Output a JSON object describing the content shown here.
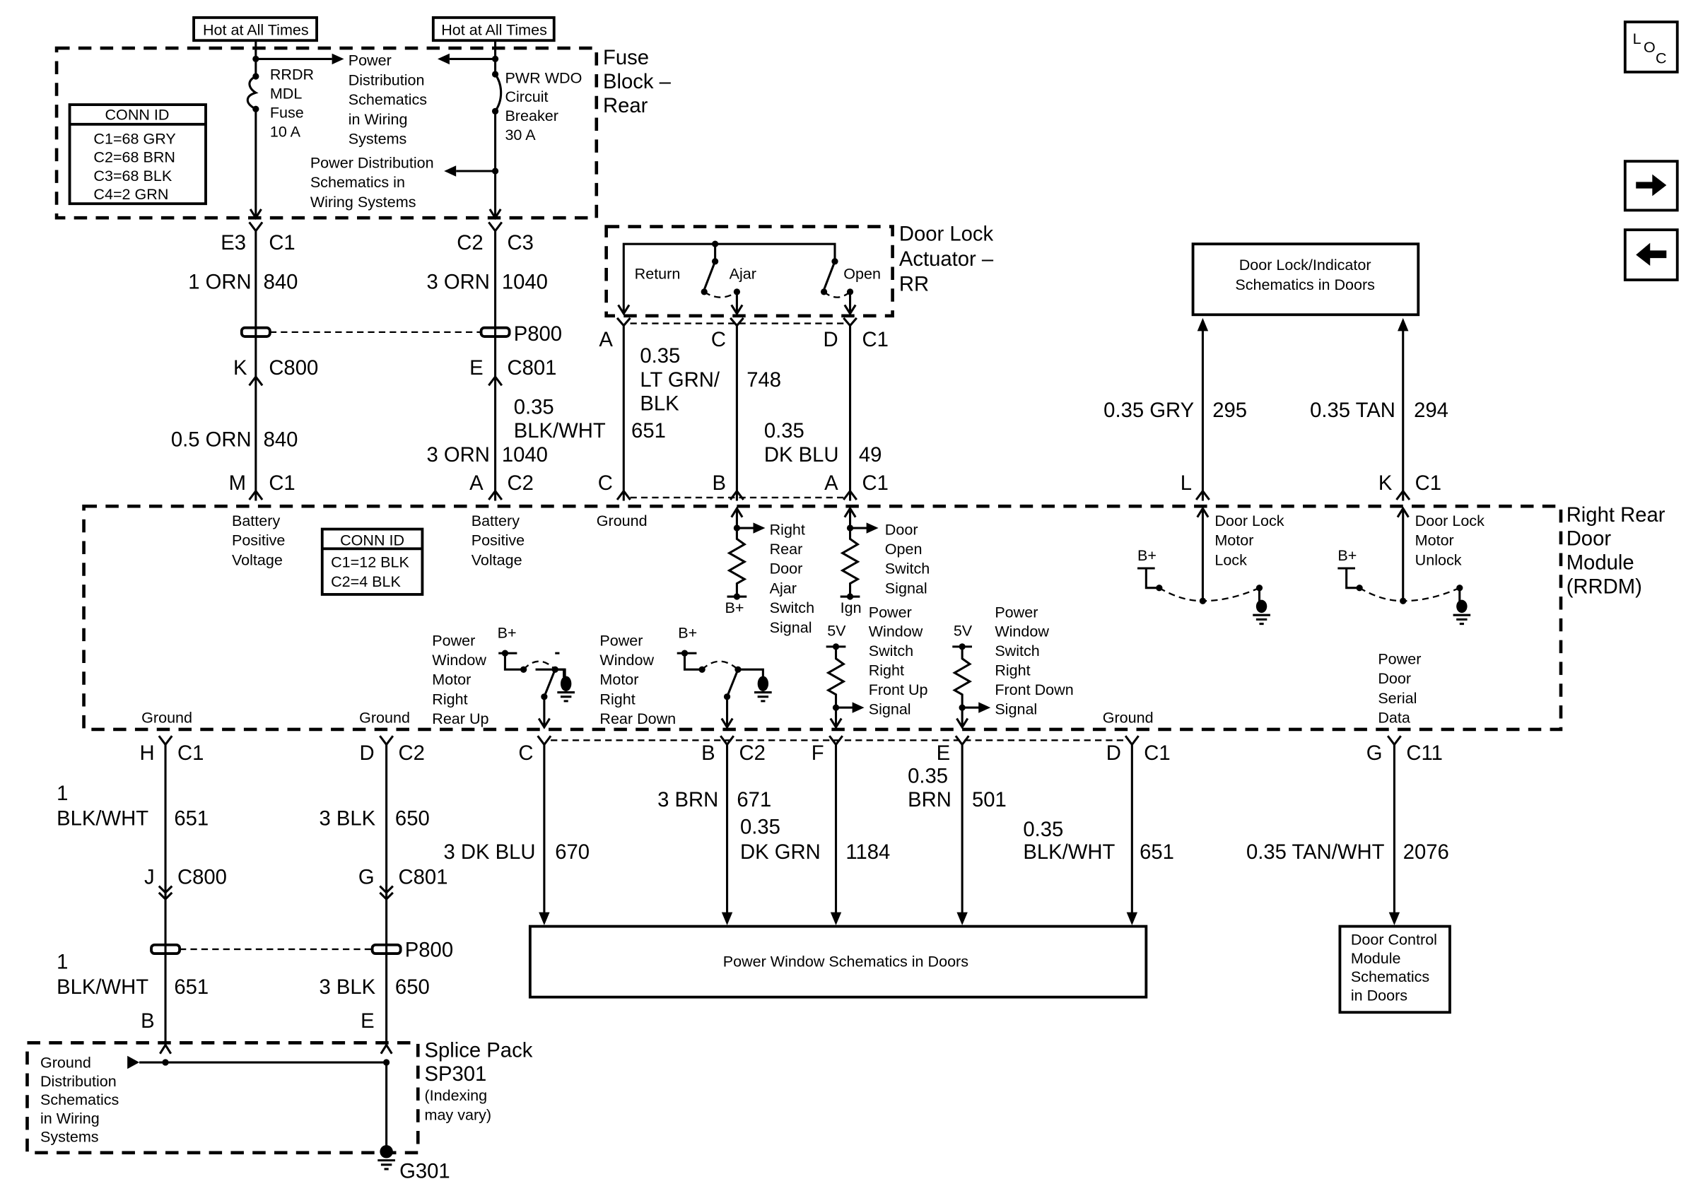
{
  "diagram": {
    "hot1": "Hot at All Times",
    "hot2": "Hot at All Times",
    "fuse_block_title": [
      "Fuse",
      "Block –",
      "Rear"
    ],
    "fuse1": [
      "RRDR",
      "MDL",
      "Fuse",
      "10 A"
    ],
    "breaker": [
      "PWR WDO",
      "Circuit",
      "Breaker",
      "30 A"
    ],
    "power_dist_1": [
      "Power",
      "Distribution",
      "Schematics",
      "in Wiring",
      "Systems"
    ],
    "power_dist_2": [
      "Power Distribution",
      "Schematics in",
      "Wiring Systems"
    ],
    "conn_id_1": {
      "header": "CONN ID",
      "rows": [
        "C1=68 GRY",
        "C2=68 BRN",
        "C3=68 BLK",
        "C4=2 GRN"
      ]
    },
    "conn_id_2": {
      "header": "CONN ID",
      "rows": [
        "C1=12 BLK",
        "C2=4 BLK"
      ]
    },
    "actuator_title": [
      "Door Lock",
      "Actuator –",
      "RR"
    ],
    "actuator_switches": {
      "return": "Return",
      "ajar": "Ajar",
      "open": "Open"
    },
    "lock_indicator_box": [
      "Door Lock/Indicator",
      "Schematics in Doors"
    ],
    "module_title": [
      "Right Rear",
      "Door",
      "Module",
      "(RRDM)"
    ],
    "power_window_box": "Power Window Schematics in Doors",
    "door_control_box": [
      "Door Control",
      "Module",
      "Schematics",
      "in Doors"
    ],
    "splice_title": [
      "Splice Pack",
      "SP301",
      "(Indexing",
      "may vary)"
    ],
    "ground_dist": [
      "Ground",
      "Distribution",
      "Schematics",
      "in Wiring",
      "Systems"
    ],
    "ground_point": "G301",
    "inline_conn": [
      "P800",
      "P800"
    ],
    "pins_top": {
      "e3": "E3",
      "c1a": "C1",
      "c2": "C2",
      "c3": "C3",
      "k": "K",
      "c800": "C800",
      "e": "E",
      "c801": "C801",
      "m": "M",
      "c1b": "C1",
      "a": "A",
      "c2b": "C2",
      "act_a": "A",
      "act_c": "C",
      "act_d": "D",
      "act_c1": "C1",
      "mod_c": "C",
      "mod_b": "B",
      "mod_a": "A",
      "mod_c1": "C1",
      "l": "L",
      "kk": "K",
      "c1c": "C1"
    },
    "wires_top": {
      "w840a": [
        "1 ORN",
        "840"
      ],
      "w1040a": [
        "3 ORN",
        "1040"
      ],
      "w840b": [
        "0.5 ORN",
        "840"
      ],
      "w1040b": [
        "3 ORN",
        "1040"
      ],
      "w651": [
        "0.35",
        "BLK/WHT",
        "651"
      ],
      "w748": [
        "0.35",
        "LT GRN/",
        "BLK",
        "748"
      ],
      "w49": [
        "0.35",
        "DK BLU",
        "49"
      ],
      "w295": [
        "0.35 GRY",
        "295"
      ],
      "w294": [
        "0.35 TAN",
        "294"
      ]
    },
    "module_labels": {
      "batt1": [
        "Battery",
        "Positive",
        "Voltage"
      ],
      "batt2": [
        "Battery",
        "Positive",
        "Voltage"
      ],
      "ground_top": "Ground",
      "ajar_signal": [
        "Right",
        "Rear",
        "Door",
        "Ajar",
        "Switch",
        "Signal"
      ],
      "open_signal": [
        "Door",
        "Open",
        "Switch",
        "Signal"
      ],
      "bplus_ajar": "B+",
      "ign": "Ign",
      "lock": [
        "Door Lock",
        "Motor",
        "Lock"
      ],
      "unlock": [
        "Door Lock",
        "Motor",
        "Unlock"
      ],
      "bplus_lock": "B+",
      "bplus_unlock": "B+",
      "pw_up": [
        "Power",
        "Window",
        "Motor",
        "Right",
        "Rear Up"
      ],
      "pw_down": [
        "Power",
        "Window",
        "Motor",
        "Right",
        "Rear Down"
      ],
      "bplus_up": "B+",
      "bplus_down": "B+",
      "fv1": "5V",
      "fv2": "5V",
      "sw_up": [
        "Power",
        "Window",
        "Switch",
        "Right",
        "Front Up",
        "Signal"
      ],
      "sw_down": [
        "Power",
        "Window",
        "Switch",
        "Right",
        "Front Down",
        "Signal"
      ],
      "ground1": "Ground",
      "ground2": "Ground",
      "ground3": "Ground",
      "serial": [
        "Power",
        "Door",
        "Serial",
        "Data"
      ]
    },
    "pins_bottom": {
      "h": "H",
      "c1a": "C1",
      "d": "D",
      "c2a": "C2",
      "c": "C",
      "b": "B",
      "c2b": "C2",
      "f": "F",
      "e": "E",
      "dd": "D",
      "c1b": "C1",
      "g": "G",
      "c11": "C11",
      "j": "J",
      "c800": "C800",
      "gg": "G",
      "c801": "C801",
      "bb": "B",
      "ee": "E"
    },
    "wires_bottom": {
      "w651a": [
        "1",
        "BLK/WHT",
        "651"
      ],
      "w650a": [
        "3 BLK",
        "650"
      ],
      "w670": [
        "3 DK BLU",
        "670"
      ],
      "w671": [
        "3 BRN",
        "671"
      ],
      "w1184": [
        "0.35",
        "DK GRN",
        "1184"
      ],
      "w501": [
        "0.35",
        "BRN",
        "501"
      ],
      "w651c": [
        "0.35",
        "BLK/WHT",
        "651"
      ],
      "w2076": [
        "0.35 TAN/WHT",
        "2076"
      ],
      "w651b": [
        "1",
        "BLK/WHT",
        "651"
      ],
      "w650b": [
        "3 BLK",
        "650"
      ]
    },
    "nav": {
      "loc_icon": "loc-icon",
      "next_icon": "arrow-right-icon",
      "prev_icon": "arrow-left-icon",
      "loc_text": [
        "L",
        "O",
        "C"
      ]
    }
  }
}
